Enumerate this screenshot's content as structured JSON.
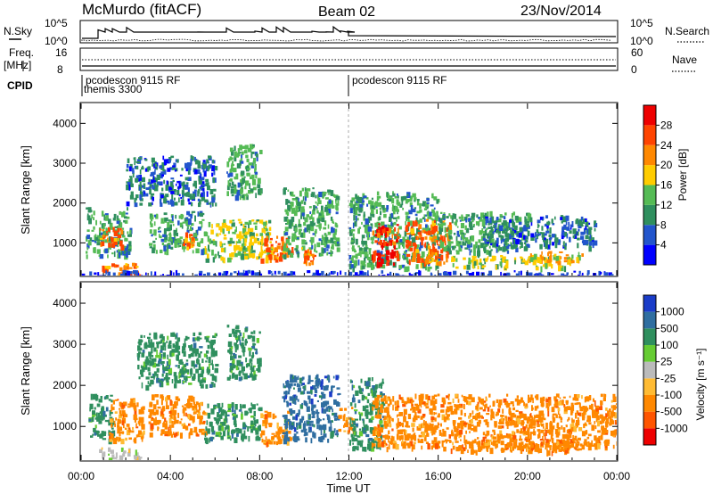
{
  "header": {
    "station": "McMurdo (fitACF)",
    "beam": "Beam 02",
    "date": "23/Nov/2014"
  },
  "top_panels": {
    "nsky_label": "N.Sky",
    "nsky_ticks": [
      "10^5",
      "10^0"
    ],
    "nsearch_label": "N.Search",
    "nsearch_ticks": [
      "10^5",
      "10^0"
    ],
    "freq_label": "Freq.",
    "freq_unit": "[MHz]",
    "freq_ticks": [
      "16",
      "8"
    ],
    "nave_label": "Nave",
    "nave_ticks": [
      "60",
      "0"
    ],
    "cpid_label": "CPID",
    "cpid_entries": [
      {
        "text": "pcodescon 9115 RF",
        "hour": 0.0
      },
      {
        "text": "themis 3300",
        "hour": 0.0
      },
      {
        "text": "pcodescon 9115 RF",
        "hour": 12.0
      }
    ]
  },
  "time_axis": {
    "label": "Time UT",
    "ticks": [
      "00:00",
      "04:00",
      "08:00",
      "12:00",
      "16:00",
      "20:00",
      "00:00"
    ],
    "tick_hours": [
      0,
      4,
      8,
      12,
      16,
      20,
      24
    ]
  },
  "power_panel": {
    "ylabel": "Slant Range [km]",
    "yticks": [
      "1000",
      "2000",
      "3000",
      "4000"
    ],
    "colorbar_label": "Power [dB]",
    "colorbar_ticks": [
      "4",
      "8",
      "12",
      "16",
      "20",
      "24",
      "28"
    ],
    "colors": [
      "#0000ff",
      "#2255cc",
      "#2f8f5e",
      "#55bb55",
      "#ffcc00",
      "#ff8800",
      "#ff4400",
      "#ee0000"
    ]
  },
  "velocity_panel": {
    "ylabel": "Slant Range [km]",
    "yticks": [
      "1000",
      "2000",
      "3000",
      "4000"
    ],
    "colorbar_label": "Velocity [m s⁻¹]",
    "colorbar_ticks": [
      "1000",
      "500",
      "100",
      "25",
      "-25",
      "-100",
      "-500",
      "-1000"
    ],
    "colors": [
      "#1a3cc8",
      "#2f6ea0",
      "#2f8f5e",
      "#66cc33",
      "#bbbbbb",
      "#ffbb33",
      "#ff8800",
      "#ff5500",
      "#ee0000"
    ]
  },
  "chart_data": {
    "type": "heatmap",
    "x_range_hours": [
      0,
      24
    ],
    "y_range_km": [
      180,
      4500
    ],
    "power_patches": [
      {
        "h0": 0.2,
        "h1": 2.2,
        "r0": 700,
        "r1": 1900,
        "v": 14
      },
      {
        "h0": 0.8,
        "h1": 1.8,
        "r0": 900,
        "r1": 1400,
        "v": 26
      },
      {
        "h0": 0.9,
        "h1": 2.6,
        "r0": 180,
        "r1": 500,
        "v": 24
      },
      {
        "h0": 2.0,
        "h1": 6.0,
        "r0": 2000,
        "r1": 3200,
        "v": 10
      },
      {
        "h0": 3.0,
        "h1": 5.5,
        "r0": 800,
        "r1": 1800,
        "v": 14
      },
      {
        "h0": 4.5,
        "h1": 5.0,
        "r0": 900,
        "r1": 1300,
        "v": 24
      },
      {
        "h0": 5.5,
        "h1": 8.5,
        "r0": 600,
        "r1": 1600,
        "v": 16
      },
      {
        "h0": 6.5,
        "h1": 8.0,
        "r0": 2200,
        "r1": 3500,
        "v": 12
      },
      {
        "h0": 8.0,
        "h1": 9.5,
        "r0": 600,
        "r1": 1200,
        "v": 24
      },
      {
        "h0": 9.0,
        "h1": 11.5,
        "r0": 700,
        "r1": 2400,
        "v": 12
      },
      {
        "h0": 9.8,
        "h1": 10.4,
        "r0": 500,
        "r1": 900,
        "v": 26
      },
      {
        "h0": 12.0,
        "h1": 16.0,
        "r0": 400,
        "r1": 2300,
        "v": 12
      },
      {
        "h0": 13.0,
        "h1": 14.2,
        "r0": 500,
        "r1": 1500,
        "v": 28
      },
      {
        "h0": 14.5,
        "h1": 16.5,
        "r0": 500,
        "r1": 1600,
        "v": 26
      },
      {
        "h0": 16.0,
        "h1": 20.0,
        "r0": 800,
        "r1": 1800,
        "v": 14
      },
      {
        "h0": 16.5,
        "h1": 22.0,
        "r0": 400,
        "r1": 700,
        "v": 18
      },
      {
        "h0": 18.0,
        "h1": 23.0,
        "r0": 900,
        "r1": 1700,
        "v": 10
      },
      {
        "h0": 20.0,
        "h1": 22.5,
        "r0": 550,
        "r1": 800,
        "v": 20
      },
      {
        "h0": 0.0,
        "h1": 24.0,
        "r0": 180,
        "r1": 320,
        "v": 4
      }
    ],
    "velocity_patches": [
      {
        "h0": 0.3,
        "h1": 1.4,
        "r0": 700,
        "r1": 1800,
        "v": 300
      },
      {
        "h0": 1.2,
        "h1": 2.8,
        "r0": 700,
        "r1": 1700,
        "v": -200
      },
      {
        "h0": 0.8,
        "h1": 2.6,
        "r0": 180,
        "r1": 500,
        "v": 0
      },
      {
        "h0": 2.5,
        "h1": 6.0,
        "r0": 2000,
        "r1": 3300,
        "v": 300
      },
      {
        "h0": 3.0,
        "h1": 5.5,
        "r0": 800,
        "r1": 1800,
        "v": -200
      },
      {
        "h0": 5.5,
        "h1": 8.0,
        "r0": 700,
        "r1": 1600,
        "v": 400
      },
      {
        "h0": 6.5,
        "h1": 8.0,
        "r0": 2200,
        "r1": 3500,
        "v": 300
      },
      {
        "h0": 8.0,
        "h1": 9.3,
        "r0": 600,
        "r1": 1400,
        "v": -300
      },
      {
        "h0": 9.0,
        "h1": 11.5,
        "r0": 700,
        "r1": 2300,
        "v": 500
      },
      {
        "h0": 11.5,
        "h1": 12.2,
        "r0": 900,
        "r1": 1500,
        "v": -300
      },
      {
        "h0": 12.0,
        "h1": 13.5,
        "r0": 500,
        "r1": 2200,
        "v": 400
      },
      {
        "h0": 13.0,
        "h1": 24.0,
        "r0": 500,
        "r1": 1800,
        "v": -300
      },
      {
        "h0": 16.5,
        "h1": 22.0,
        "r0": 400,
        "r1": 700,
        "v": -400
      },
      {
        "h0": 20.0,
        "h1": 23.5,
        "r0": 450,
        "r1": 700,
        "v": -500
      }
    ]
  }
}
